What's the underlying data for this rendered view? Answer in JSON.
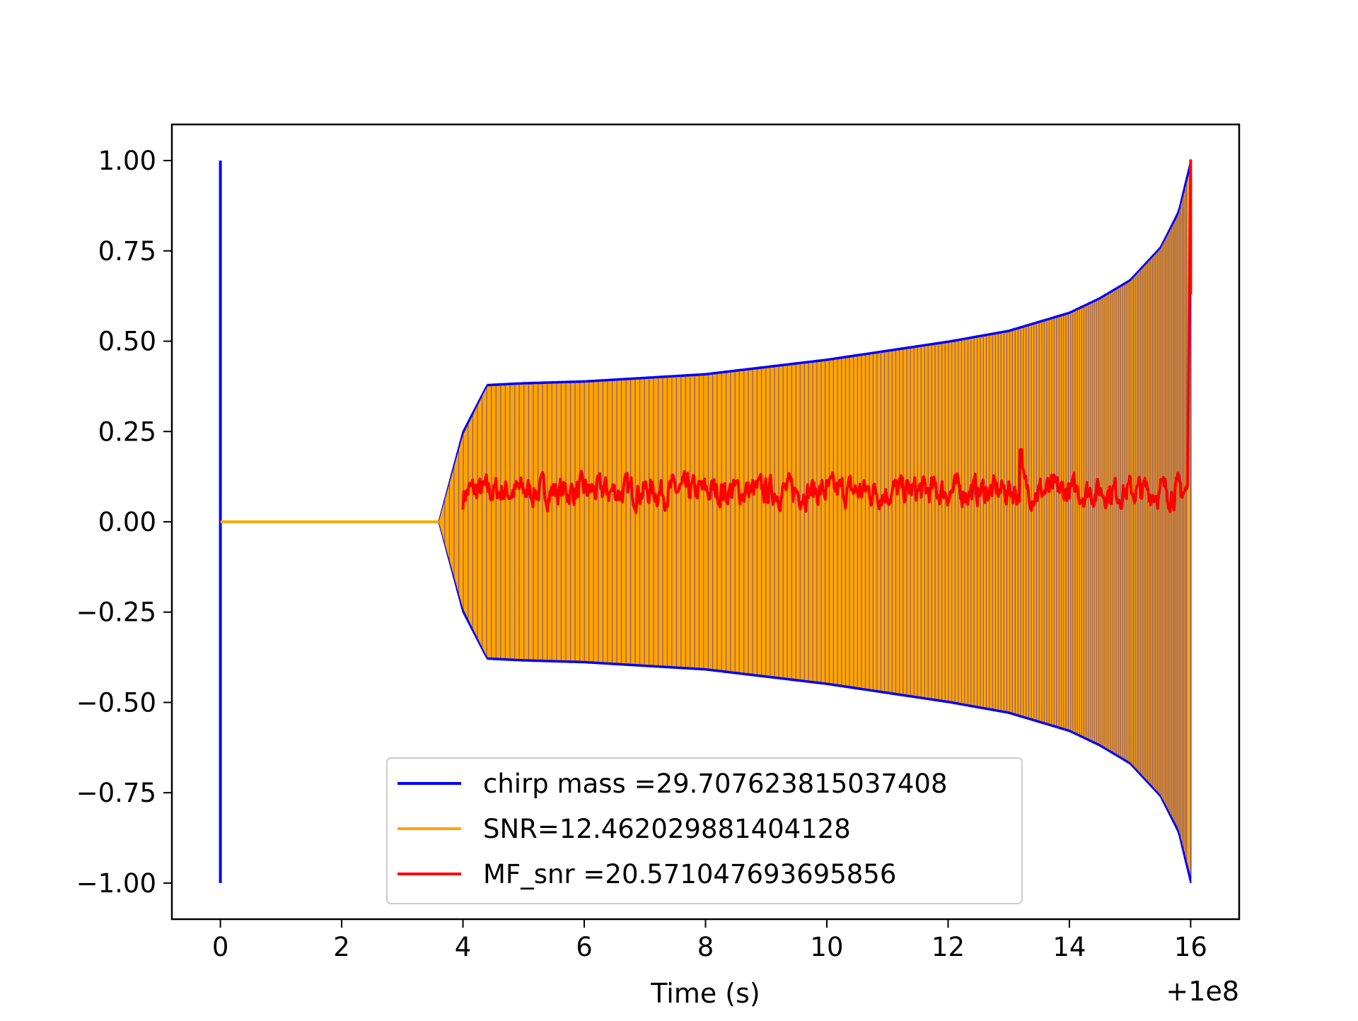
{
  "chart_data": {
    "type": "line",
    "title": "",
    "xlabel": "Time (s)",
    "ylabel": "",
    "x_offset_label": "+1e8",
    "xlim": [
      -0.8,
      16.8
    ],
    "ylim": [
      -1.1,
      1.1
    ],
    "x_ticks": [
      0,
      2,
      4,
      6,
      8,
      10,
      12,
      14,
      16
    ],
    "x_tick_labels": [
      "0",
      "2",
      "4",
      "6",
      "8",
      "10",
      "12",
      "14",
      "16"
    ],
    "y_ticks": [
      1.0,
      0.75,
      0.5,
      0.25,
      0.0,
      -0.25,
      -0.5,
      -0.75,
      -1.0
    ],
    "y_tick_labels": [
      "1.00",
      "0.75",
      "0.50",
      "0.25",
      "0.00",
      "−0.25",
      "−0.50",
      "−0.75",
      "−1.00"
    ],
    "grid": false,
    "legend_position": "bottom-center",
    "series": [
      {
        "name": "chirp mass =29.707623815037408",
        "color": "#0000ff",
        "x": [
          0,
          0,
          0,
          0.05,
          3.6,
          4.0,
          4.4,
          5.0,
          6.0,
          8.0,
          10.0,
          12.0,
          13.0,
          14.0,
          14.5,
          15.0,
          15.5,
          15.8,
          16.0
        ],
        "y": [
          1.0,
          -1.0,
          0.0,
          0.0,
          0.0,
          0.25,
          0.38,
          0.385,
          0.39,
          0.41,
          0.45,
          0.5,
          0.53,
          0.58,
          0.62,
          0.67,
          0.76,
          0.86,
          1.0
        ],
        "note_envelope": true
      },
      {
        "name": "SNR=12.462029881404128",
        "color": "#ffa500",
        "x": [
          0,
          3.6,
          4.0,
          4.4,
          5.0,
          6.0,
          8.0,
          10.0,
          12.0,
          13.0,
          14.0,
          14.5,
          15.0,
          15.5,
          15.8,
          16.0
        ],
        "y": [
          0.0,
          0.0,
          0.24,
          0.375,
          0.38,
          0.385,
          0.405,
          0.445,
          0.495,
          0.525,
          0.575,
          0.615,
          0.665,
          0.755,
          0.85,
          0.98
        ]
      },
      {
        "name": "MF_snr =20.571047693695856",
        "color": "#ff0000",
        "x_start": 4.0,
        "x_end": 15.95,
        "baseline": 0.0,
        "typical_max": 0.15,
        "peak_near_x": 13.2,
        "peak_y": 0.2,
        "end_spike_x": 16.0,
        "end_spike_y": 1.0
      }
    ]
  }
}
